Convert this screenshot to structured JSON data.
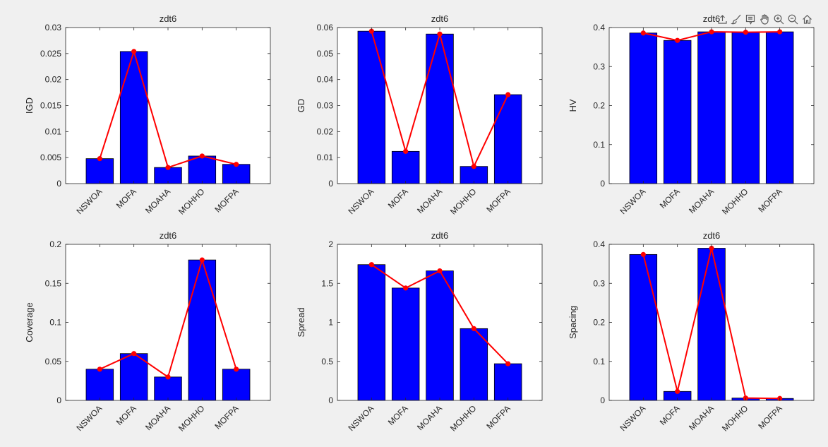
{
  "figure": {
    "background": "#f0f0f0",
    "bar_color": "#0000ff",
    "line_color": "#ff0000"
  },
  "toolbar": {
    "icons": [
      "export-icon",
      "brush-icon",
      "datatip-icon",
      "pan-icon",
      "zoom-in-icon",
      "zoom-out-icon",
      "home-icon"
    ]
  },
  "chart_data": [
    {
      "type": "bar",
      "title": "zdt6",
      "ylabel": "IGD",
      "categories": [
        "NSWOA",
        "MOFA",
        "MOAHA",
        "MOHHO",
        "MOFPA"
      ],
      "values": [
        0.0048,
        0.0254,
        0.0031,
        0.0053,
        0.0037
      ],
      "line_overlay": true,
      "ylim": [
        0,
        0.03
      ],
      "yticks": [
        0,
        0.005,
        0.01,
        0.015,
        0.02,
        0.025,
        0.03
      ],
      "ytick_labels": [
        "0",
        "0.005",
        "0.01",
        "0.015",
        "0.02",
        "0.025",
        "0.03"
      ],
      "grid": false
    },
    {
      "type": "bar",
      "title": "zdt6",
      "ylabel": "GD",
      "categories": [
        "NSWOA",
        "MOFA",
        "MOAHA",
        "MOHHO",
        "MOFPA"
      ],
      "values": [
        0.0586,
        0.0124,
        0.0575,
        0.0066,
        0.0342
      ],
      "line_overlay": true,
      "ylim": [
        0,
        0.06
      ],
      "yticks": [
        0,
        0.01,
        0.02,
        0.03,
        0.04,
        0.05,
        0.06
      ],
      "ytick_labels": [
        "0",
        "0.01",
        "0.02",
        "0.03",
        "0.04",
        "0.05",
        "0.06"
      ],
      "grid": false
    },
    {
      "type": "bar",
      "title": "zdt6",
      "ylabel": "HV",
      "categories": [
        "NSWOA",
        "MOFA",
        "MOAHA",
        "MOHHO",
        "MOFPA"
      ],
      "values": [
        0.386,
        0.367,
        0.389,
        0.388,
        0.389
      ],
      "line_overlay": true,
      "ylim": [
        0,
        0.4
      ],
      "yticks": [
        0,
        0.1,
        0.2,
        0.3,
        0.4
      ],
      "ytick_labels": [
        "0",
        "0.1",
        "0.2",
        "0.3",
        "0.4"
      ],
      "grid": false
    },
    {
      "type": "bar",
      "title": "zdt6",
      "ylabel": "Coverage",
      "categories": [
        "NSWOA",
        "MOFA",
        "MOAHA",
        "MOHHO",
        "MOFPA"
      ],
      "values": [
        0.04,
        0.06,
        0.03,
        0.18,
        0.04
      ],
      "line_overlay": true,
      "ylim": [
        0,
        0.2
      ],
      "yticks": [
        0,
        0.05,
        0.1,
        0.15,
        0.2
      ],
      "ytick_labels": [
        "0",
        "0.05",
        "0.1",
        "0.15",
        "0.2"
      ],
      "grid": false
    },
    {
      "type": "bar",
      "title": "zdt6",
      "ylabel": "Spread",
      "categories": [
        "NSWOA",
        "MOFA",
        "MOAHA",
        "MOHHO",
        "MOFPA"
      ],
      "values": [
        1.74,
        1.44,
        1.66,
        0.92,
        0.47
      ],
      "line_overlay": true,
      "ylim": [
        0,
        2
      ],
      "yticks": [
        0,
        0.5,
        1,
        1.5,
        2
      ],
      "ytick_labels": [
        "0",
        "0.5",
        "1",
        "1.5",
        "2"
      ],
      "grid": false
    },
    {
      "type": "bar",
      "title": "zdt6",
      "ylabel": "Spacing",
      "categories": [
        "NSWOA",
        "MOFA",
        "MOAHA",
        "MOHHO",
        "MOFPA"
      ],
      "values": [
        0.374,
        0.023,
        0.39,
        0.006,
        0.005
      ],
      "line_overlay": true,
      "ylim": [
        0,
        0.4
      ],
      "yticks": [
        0,
        0.1,
        0.2,
        0.3,
        0.4
      ],
      "ytick_labels": [
        "0",
        "0.1",
        "0.2",
        "0.3",
        "0.4"
      ],
      "grid": false
    }
  ]
}
